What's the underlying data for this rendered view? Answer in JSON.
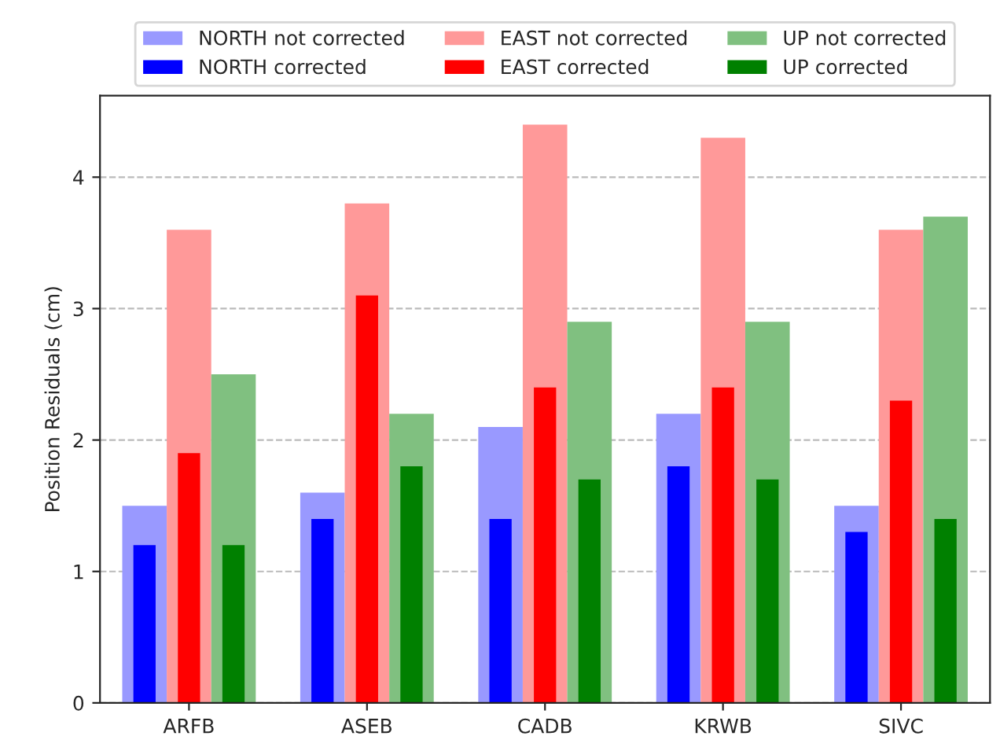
{
  "chart_data": {
    "type": "bar",
    "ylabel": "Position Residuals (cm)",
    "categories": [
      "ARFB",
      "ASEB",
      "CADB",
      "KRWB",
      "SIVC"
    ],
    "series": [
      {
        "name": "NORTH not corrected",
        "color": "#9999ff",
        "values": [
          1.5,
          1.6,
          2.1,
          2.2,
          1.5
        ]
      },
      {
        "name": "NORTH corrected",
        "color": "#0000ff",
        "values": [
          1.2,
          1.4,
          1.4,
          1.8,
          1.3
        ]
      },
      {
        "name": "EAST not corrected",
        "color": "#ff9999",
        "values": [
          3.6,
          3.8,
          4.4,
          4.3,
          3.6
        ]
      },
      {
        "name": "EAST corrected",
        "color": "#ff0000",
        "values": [
          1.9,
          3.1,
          2.4,
          2.4,
          2.3
        ]
      },
      {
        "name": "UP not corrected",
        "color": "#80c080",
        "values": [
          2.5,
          2.2,
          2.9,
          2.9,
          3.7
        ]
      },
      {
        "name": "UP corrected",
        "color": "#008000",
        "values": [
          1.2,
          1.8,
          1.7,
          1.7,
          1.4
        ]
      }
    ],
    "ylim": [
      0,
      4.62
    ],
    "yticks": [
      0,
      1,
      2,
      3,
      4
    ],
    "grid": "y",
    "legend": "top"
  }
}
